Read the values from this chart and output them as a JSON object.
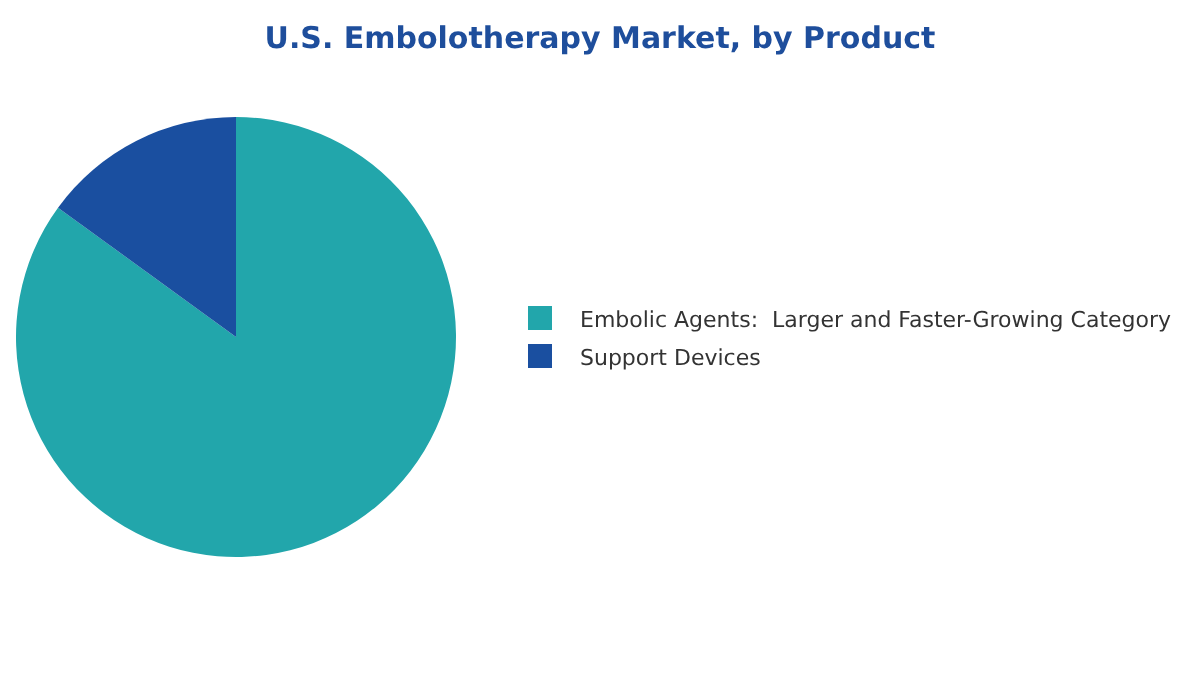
{
  "chart_data": {
    "type": "pie",
    "title": "U.S. Embolotherapy Market, by Product",
    "categories": [
      "Embolic Agents:  Larger and Faster-Growing Category",
      "Support Devices"
    ],
    "values": [
      85,
      15
    ],
    "colors": [
      "#22a6ab",
      "#1a4fa0"
    ],
    "legend": "right"
  }
}
